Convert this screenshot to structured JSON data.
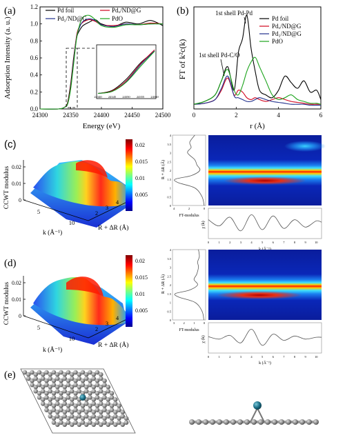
{
  "panels": {
    "a": {
      "label": "(a)",
      "xlabel": "Energy (eV)",
      "ylabel": "Adsorption Intensity (a. u.)",
      "xticks": [
        "24300",
        "24350",
        "24400",
        "24450",
        "24500"
      ],
      "yticks": [
        "0.0",
        "0.2",
        "0.4",
        "0.6",
        "0.8",
        "1.0",
        "1.2"
      ],
      "inset_xticks": [
        "24340",
        "24345",
        "24350",
        "24355",
        "24360"
      ],
      "legend": [
        "Pd foil",
        "Pdₓ/ND@G",
        "Pd₁/ND@G",
        "PdO"
      ]
    },
    "b": {
      "label": "(b)",
      "xlabel": "r (Å)",
      "ylabel": "FT of k²c(k)",
      "xticks": [
        "0",
        "2",
        "4",
        "6"
      ],
      "annot_pdpd": "1st shell Pd-Pd",
      "annot_pdco": "1st shell Pd-C/O",
      "legend": [
        "Pd foil",
        "Pdₓ/ND@G",
        "Pd₁/ND@G",
        "PdO"
      ]
    },
    "c": {
      "label": "(c)",
      "zlabel": "CCWT modulus",
      "zticks": [
        "0",
        "0.01",
        "0.02"
      ],
      "kticks": [
        "5",
        "10"
      ],
      "rticks": [
        "2",
        "3",
        "4"
      ],
      "klabel": "k (Å⁻¹)",
      "rlabel": "R + ΔR (Å)",
      "colorbar_ticks": [
        "0.02",
        "0.015",
        "0.01",
        "0.005"
      ],
      "ft_label": "FT-modulus",
      "ft_ticks": [
        "4",
        "2",
        "0"
      ],
      "r_axis_label": "R + ΔR (Å)",
      "r_ticks": [
        "4",
        "3.5",
        "3",
        "2.5",
        "2",
        "1.5",
        "1",
        "0.5",
        "0"
      ],
      "chi_label": "χ (k)",
      "k_axis_label": "k (Å⁻¹)",
      "k_ticks": [
        "0",
        "1",
        "2",
        "3",
        "4",
        "5",
        "6",
        "7",
        "8",
        "9",
        "10"
      ]
    },
    "d": {
      "label": "(d)",
      "zlabel": "CCWT modulus",
      "zticks": [
        "0",
        "0.01",
        "0.02"
      ],
      "kticks": [
        "5",
        "10"
      ],
      "rticks": [
        "2",
        "3",
        "4"
      ],
      "klabel": "k (Å⁻¹)",
      "rlabel": "R + ΔR (Å)",
      "colorbar_ticks": [
        "0.02",
        "0.015",
        "0.01",
        "0.005"
      ],
      "ft_label": "FT-modulus",
      "ft_ticks": [
        "3",
        "2",
        "1",
        "0"
      ],
      "r_axis_label": "R + ΔR (Å)",
      "r_ticks": [
        "4",
        "3.5",
        "3",
        "2.5",
        "2",
        "1.5",
        "1",
        "0.5",
        "0"
      ],
      "chi_label": "χ (k)",
      "k_axis_label": "k (Å⁻¹)",
      "k_ticks": [
        "0",
        "1",
        "2",
        "3",
        "4",
        "5",
        "6",
        "7",
        "8",
        "9",
        "10"
      ]
    },
    "e": {
      "label": "(e)"
    }
  },
  "colors": {
    "pd_foil": "#000000",
    "pdx": "#d0021b",
    "pd1": "#1f2f8c",
    "pdo": "#1aa31a",
    "atom_c": "#8a8a8a",
    "atom_pd": "#1b6e86"
  },
  "chart_data": [
    {
      "type": "line",
      "panel": "a",
      "xlabel": "Energy (eV)",
      "ylabel": "Adsorption Intensity (a. u.)",
      "xlim": [
        24300,
        24500
      ],
      "ylim": [
        0.0,
        1.2
      ],
      "series": [
        {
          "name": "Pd foil",
          "x": [
            24300,
            24330,
            24340,
            24345,
            24350,
            24355,
            24360,
            24365,
            24370,
            24380,
            24390,
            24400,
            24420,
            24440,
            24460,
            24480,
            24500
          ],
          "y": [
            0.0,
            0.0,
            0.02,
            0.08,
            0.3,
            0.62,
            0.85,
            0.93,
            0.98,
            1.02,
            1.05,
            1.0,
            0.97,
            1.02,
            1.0,
            1.04,
            0.98
          ]
        },
        {
          "name": "Pdₓ/ND@G",
          "x": [
            24300,
            24330,
            24340,
            24345,
            24350,
            24355,
            24360,
            24365,
            24370,
            24380,
            24390,
            24400,
            24420,
            24440,
            24460,
            24480,
            24500
          ],
          "y": [
            0.0,
            0.0,
            0.02,
            0.07,
            0.27,
            0.6,
            0.88,
            0.98,
            1.02,
            1.05,
            1.03,
            0.99,
            0.98,
            1.0,
            0.99,
            1.01,
            1.0
          ]
        },
        {
          "name": "Pd₁/ND@G",
          "x": [
            24300,
            24330,
            24340,
            24345,
            24350,
            24355,
            24360,
            24365,
            24370,
            24380,
            24390,
            24400,
            24420,
            24440,
            24460,
            24480,
            24500
          ],
          "y": [
            0.0,
            0.0,
            0.02,
            0.06,
            0.25,
            0.58,
            0.86,
            0.97,
            1.03,
            1.06,
            1.04,
            0.99,
            0.97,
            1.0,
            0.99,
            1.0,
            1.0
          ]
        },
        {
          "name": "PdO",
          "x": [
            24300,
            24330,
            24340,
            24345,
            24350,
            24355,
            24360,
            24365,
            24370,
            24380,
            24390,
            24400,
            24420,
            24440,
            24460,
            24480,
            24500
          ],
          "y": [
            0.0,
            0.0,
            0.02,
            0.06,
            0.24,
            0.55,
            0.85,
            1.0,
            1.08,
            1.1,
            1.05,
            0.98,
            0.96,
            0.99,
            0.99,
            1.0,
            1.0
          ]
        }
      ]
    },
    {
      "type": "line",
      "panel": "b",
      "xlabel": "r (Å)",
      "ylabel": "FT of k²c(k)",
      "xlim": [
        0,
        6
      ],
      "series": [
        {
          "name": "Pd foil",
          "x": [
            0,
            0.5,
            1.0,
            1.3,
            1.6,
            1.9,
            2.1,
            2.3,
            2.5,
            2.7,
            2.9,
            3.1,
            3.4,
            3.7,
            4.0,
            4.3,
            4.6,
            4.9,
            5.2,
            5.5,
            5.8,
            6.0
          ],
          "y": [
            0.05,
            0.08,
            0.15,
            0.3,
            0.45,
            0.2,
            0.6,
            0.75,
            1.0,
            0.65,
            0.4,
            0.2,
            0.15,
            0.12,
            0.2,
            0.35,
            0.28,
            0.22,
            0.3,
            0.18,
            0.2,
            0.1
          ]
        },
        {
          "name": "Pdₓ/ND@G",
          "x": [
            0,
            0.5,
            1.0,
            1.3,
            1.6,
            1.9,
            2.1,
            2.3,
            2.5,
            2.7,
            2.9,
            3.1,
            3.4,
            3.7,
            4.0,
            4.3,
            4.6,
            4.9,
            5.2,
            5.5,
            5.8,
            6.0
          ],
          "y": [
            0.05,
            0.06,
            0.1,
            0.2,
            0.33,
            0.15,
            0.2,
            0.18,
            0.12,
            0.1,
            0.12,
            0.1,
            0.08,
            0.1,
            0.12,
            0.1,
            0.08,
            0.07,
            0.06,
            0.05,
            0.05,
            0.05
          ]
        },
        {
          "name": "Pd₁/ND@G",
          "x": [
            0,
            0.5,
            1.0,
            1.3,
            1.6,
            1.9,
            2.1,
            2.3,
            2.5,
            2.7,
            2.9,
            3.1,
            3.4,
            3.7,
            4.0,
            4.3,
            4.6,
            4.9,
            5.2,
            5.5,
            5.8,
            6.0
          ],
          "y": [
            0.05,
            0.06,
            0.1,
            0.22,
            0.35,
            0.14,
            0.12,
            0.1,
            0.08,
            0.08,
            0.1,
            0.12,
            0.1,
            0.08,
            0.07,
            0.06,
            0.05,
            0.05,
            0.05,
            0.04,
            0.04,
            0.04
          ]
        },
        {
          "name": "PdO",
          "x": [
            0,
            0.5,
            1.0,
            1.3,
            1.6,
            1.9,
            2.1,
            2.3,
            2.5,
            2.7,
            2.9,
            3.1,
            3.4,
            3.7,
            4.0,
            4.3,
            4.6,
            4.9,
            5.2,
            5.5,
            5.8,
            6.0
          ],
          "y": [
            0.05,
            0.08,
            0.15,
            0.3,
            0.42,
            0.2,
            0.15,
            0.25,
            0.4,
            0.5,
            0.55,
            0.45,
            0.3,
            0.15,
            0.1,
            0.12,
            0.15,
            0.1,
            0.08,
            0.06,
            0.06,
            0.05
          ]
        }
      ]
    },
    {
      "type": "heatmap",
      "panel": "c",
      "xlabel": "k (Å⁻¹)",
      "ylabel": "R + ΔR (Å)",
      "xlim": [
        0,
        10.5
      ],
      "ylim": [
        0,
        4
      ],
      "peaks": [
        {
          "k": 5.0,
          "R": 1.5,
          "modulus": 0.021
        },
        {
          "k": 9.5,
          "R": 3.3,
          "modulus": 0.008
        }
      ],
      "ft_modulus": {
        "R": [
          0,
          0.5,
          1.0,
          1.3,
          1.5,
          1.7,
          2.0,
          2.3,
          2.6,
          3.0,
          3.3,
          3.6,
          4.0
        ],
        "value": [
          0.2,
          0.5,
          1.5,
          3.8,
          4.2,
          2.0,
          0.8,
          1.2,
          1.5,
          2.5,
          2.0,
          2.2,
          1.5
        ]
      },
      "chi_k": {
        "k": [
          0,
          1,
          2,
          3,
          4,
          5,
          6,
          7,
          8,
          9,
          10,
          10.5
        ],
        "value": [
          0.3,
          -0.2,
          0.5,
          -0.6,
          0.7,
          -0.5,
          0.6,
          -0.4,
          0.3,
          -0.3,
          0.2,
          0.1
        ]
      }
    },
    {
      "type": "heatmap",
      "panel": "d",
      "xlabel": "k (Å⁻¹)",
      "ylabel": "R + ΔR (Å)",
      "xlim": [
        0,
        10.5
      ],
      "ylim": [
        0,
        4
      ],
      "peaks": [
        {
          "k": 4.5,
          "R": 1.5,
          "modulus": 0.022
        }
      ],
      "ft_modulus": {
        "R": [
          0,
          0.5,
          1.0,
          1.3,
          1.5,
          1.7,
          2.0,
          2.3,
          2.6,
          3.0,
          3.3,
          3.6,
          4.0
        ],
        "value": [
          0.2,
          0.4,
          1.2,
          3.0,
          3.4,
          1.8,
          0.9,
          1.3,
          1.0,
          0.8,
          0.9,
          0.7,
          0.8
        ]
      },
      "chi_k": {
        "k": [
          0,
          1,
          2,
          3,
          4,
          5,
          6,
          7,
          8,
          9,
          10,
          10.5
        ],
        "value": [
          0.1,
          -0.1,
          0.2,
          -0.4,
          0.7,
          -0.6,
          0.3,
          -0.2,
          0.15,
          -0.1,
          0.05,
          0.05
        ]
      }
    }
  ]
}
